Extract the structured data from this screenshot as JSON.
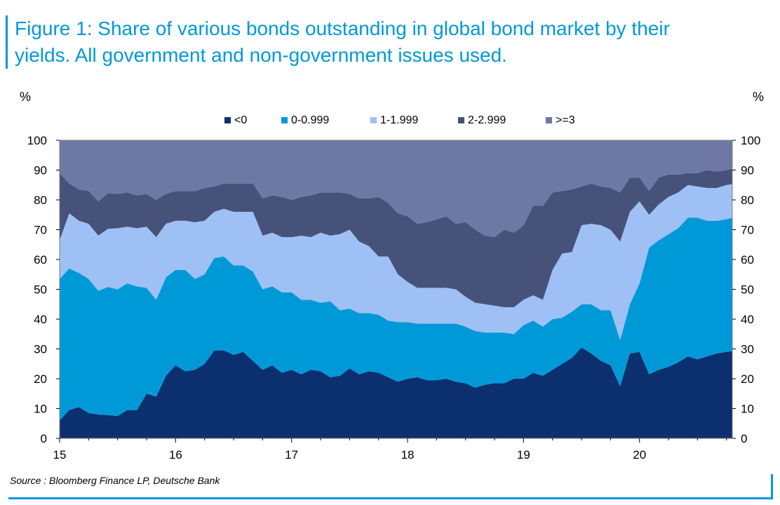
{
  "title_line1": "Figure 1: Share of various bonds outstanding in global bond market by their",
  "title_line2": "yields. All government and non-government issues used.",
  "source": "Source : Bloomberg Finance LP, Deutsche Bank",
  "chart_data": {
    "type": "area",
    "stacked": true,
    "ylabel_left": "%",
    "ylabel_right": "%",
    "ylim": [
      0,
      100
    ],
    "yticks": [
      0,
      10,
      20,
      30,
      40,
      50,
      60,
      70,
      80,
      90,
      100
    ],
    "xticks": [
      "15",
      "16",
      "17",
      "18",
      "19",
      "20"
    ],
    "xlim": [
      2015.0,
      2020.8
    ],
    "legend_position": "top",
    "x": [
      2015.0,
      2015.083,
      2015.167,
      2015.25,
      2015.333,
      2015.417,
      2015.5,
      2015.583,
      2015.667,
      2015.75,
      2015.833,
      2015.917,
      2016.0,
      2016.083,
      2016.167,
      2016.25,
      2016.333,
      2016.417,
      2016.5,
      2016.583,
      2016.667,
      2016.75,
      2016.833,
      2016.917,
      2017.0,
      2017.083,
      2017.167,
      2017.25,
      2017.333,
      2017.417,
      2017.5,
      2017.583,
      2017.667,
      2017.75,
      2017.833,
      2017.917,
      2018.0,
      2018.083,
      2018.167,
      2018.25,
      2018.333,
      2018.417,
      2018.5,
      2018.583,
      2018.667,
      2018.75,
      2018.833,
      2018.917,
      2019.0,
      2019.083,
      2019.167,
      2019.25,
      2019.333,
      2019.417,
      2019.5,
      2019.583,
      2019.667,
      2019.75,
      2019.833,
      2019.917,
      2020.0,
      2020.083,
      2020.167,
      2020.25,
      2020.333,
      2020.417,
      2020.5,
      2020.583,
      2020.667,
      2020.75,
      2020.8
    ],
    "series": [
      {
        "name": "<0",
        "color": "#0b2f6f",
        "values": [
          6,
          9.5,
          10.5,
          8.5,
          8,
          7.8,
          7.5,
          9.5,
          9.5,
          15,
          14,
          21,
          24.5,
          22.5,
          23,
          25,
          29.5,
          29.5,
          28,
          29,
          26,
          23,
          24.5,
          22,
          23,
          21.5,
          23,
          22.5,
          20.5,
          21,
          23.5,
          21.5,
          22.5,
          22,
          20.5,
          19,
          20,
          20.5,
          19.5,
          19.5,
          20,
          19,
          18.5,
          17,
          18,
          18.5,
          18.5,
          20,
          20,
          22,
          21,
          23,
          25,
          27,
          30.5,
          28.5,
          26,
          24.5,
          17.5,
          28.5,
          29,
          21.5,
          23,
          24,
          25.5,
          27.5,
          26.5,
          27.5,
          28.5,
          29,
          29.3
        ]
      },
      {
        "name": "0-0.999",
        "color": "#0099d8",
        "values": [
          47.5,
          47.5,
          45,
          45,
          41.5,
          43,
          42.5,
          42.5,
          41.5,
          35.5,
          32.5,
          33,
          32,
          34,
          30.5,
          30,
          31,
          31.5,
          30,
          29,
          30,
          27,
          26.5,
          27,
          26,
          25,
          23.5,
          23,
          25.5,
          22,
          20,
          20.5,
          19.5,
          19.5,
          19,
          20,
          19,
          18,
          19,
          19,
          18.5,
          19.5,
          19,
          19,
          17.5,
          17,
          17,
          15,
          18,
          17.5,
          16.5,
          17,
          15.5,
          15.5,
          14.5,
          16.5,
          17,
          18.5,
          15.5,
          16.5,
          23,
          42.5,
          43.5,
          44.5,
          45,
          46.5,
          47.5,
          45.5,
          44.5,
          44.5,
          44.7
        ]
      },
      {
        "name": "1-1.999",
        "color": "#9fc0f5",
        "values": [
          13,
          18.5,
          17.5,
          18.5,
          18.5,
          19.5,
          20.5,
          19,
          19.5,
          20.5,
          21,
          18,
          16.5,
          16.5,
          19,
          18,
          15.5,
          16,
          18,
          18,
          20,
          18,
          18,
          18.5,
          18.5,
          21.5,
          21,
          23.5,
          22,
          25.5,
          26.5,
          24,
          22.5,
          19.5,
          21.5,
          16,
          13.5,
          12,
          12,
          12,
          12,
          11.5,
          10,
          9.5,
          9.5,
          9,
          8.5,
          9,
          8.5,
          8.5,
          9,
          16.5,
          21.5,
          20,
          26.5,
          27,
          28.5,
          27,
          33,
          31,
          27.5,
          11,
          12,
          12.5,
          12,
          11,
          10.5,
          11,
          11,
          11.5,
          11.3
        ]
      },
      {
        "name": "2-2.999",
        "color": "#46527a",
        "values": [
          22.5,
          10,
          10.5,
          11,
          11.5,
          12,
          11.5,
          11.5,
          11,
          11,
          12.5,
          10,
          10,
          10,
          10.5,
          11,
          8.5,
          8.5,
          9.5,
          9.5,
          9.5,
          12.5,
          12.5,
          13.5,
          12.5,
          13,
          14,
          13.5,
          14.5,
          14,
          12,
          14.5,
          16,
          20,
          18,
          20.5,
          22,
          21.5,
          22,
          23,
          24,
          22,
          25,
          24.5,
          23,
          23,
          26,
          25,
          25,
          30,
          31.5,
          26,
          21,
          21,
          13,
          13.5,
          13,
          14,
          16.5,
          11.5,
          8,
          8,
          9,
          7.5,
          6,
          4,
          4.5,
          6,
          5.5,
          5,
          5.2
        ]
      },
      {
        "name": ">=3",
        "color": "#6e78a4",
        "values": [
          11,
          14.5,
          16.5,
          17,
          20.5,
          17.7,
          18,
          17.5,
          18.5,
          18,
          20,
          18,
          17,
          17,
          17,
          16,
          15.5,
          14.5,
          14.5,
          14.5,
          14.5,
          19.5,
          18.5,
          19,
          20,
          19,
          18.5,
          17.5,
          17.5,
          17.5,
          18,
          19.5,
          19.5,
          19,
          21,
          24.5,
          25.5,
          28,
          27.5,
          26.5,
          25.5,
          28,
          27.5,
          30,
          32,
          32.5,
          30,
          31,
          28.5,
          22,
          22,
          17.5,
          17,
          16.5,
          15.5,
          14.5,
          15.5,
          16,
          17.5,
          12.5,
          12.5,
          17,
          12.5,
          11.5,
          11.5,
          11,
          11,
          10,
          10.5,
          10,
          9.5
        ]
      }
    ]
  }
}
